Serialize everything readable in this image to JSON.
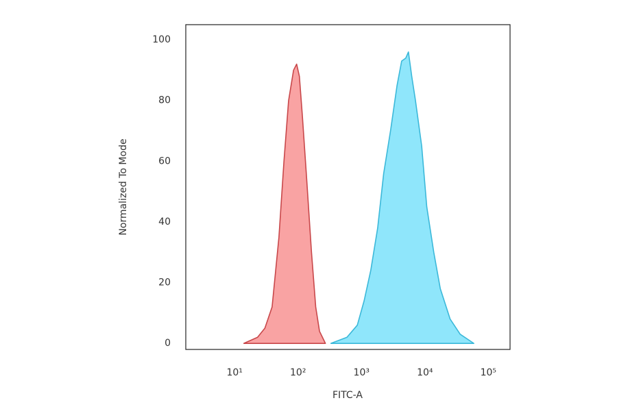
{
  "chart_data": {
    "type": "area",
    "xlabel": "FITC-A",
    "ylabel": "Normalized To Mode",
    "xscale": "log",
    "xlim": [
      1.7,
      220000
    ],
    "ylim": [
      -2,
      105
    ],
    "xticks": [
      {
        "value": 10,
        "label": "10¹"
      },
      {
        "value": 100,
        "label": "10²"
      },
      {
        "value": 1000,
        "label": "10³"
      },
      {
        "value": 10000,
        "label": "10⁴"
      },
      {
        "value": 100000,
        "label": "10⁵"
      }
    ],
    "yticks": [
      0,
      20,
      40,
      60,
      80,
      100
    ],
    "series": [
      {
        "color": "#c8474a",
        "fill": "#f9a3a3",
        "x": [
          14,
          23,
          30,
          39,
          50,
          60,
          71,
          85,
          95,
          105,
          117,
          136,
          163,
          190,
          218,
          270
        ],
        "values": [
          0,
          2,
          5,
          12,
          35,
          60,
          80,
          90,
          92,
          88,
          75,
          55,
          30,
          12,
          4,
          0
        ]
      },
      {
        "color": "#3bb8d9",
        "fill": "#8fe6fb",
        "x": [
          330,
          590,
          860,
          1100,
          1400,
          1800,
          2240,
          2870,
          3640,
          4300,
          5000,
          5500,
          6200,
          7100,
          8900,
          10700,
          13800,
          17500,
          25000,
          36000,
          59000
        ],
        "values": [
          0,
          2,
          6,
          14,
          24,
          38,
          56,
          70,
          85,
          93,
          94,
          96,
          88,
          80,
          65,
          45,
          30,
          18,
          8,
          3,
          0
        ]
      }
    ]
  }
}
